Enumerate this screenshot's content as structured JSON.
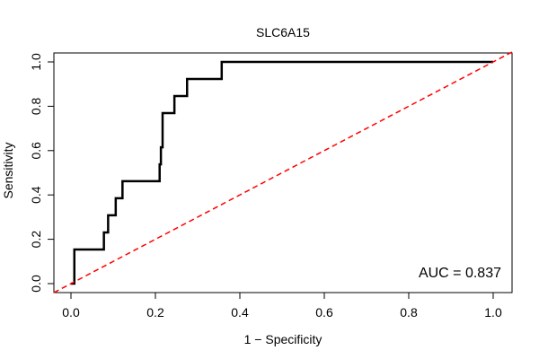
{
  "chart_data": {
    "type": "line",
    "title": "SLC6A15",
    "xlabel": "1 − Specificity",
    "ylabel": "Sensitivity",
    "xlim": [
      0,
      1
    ],
    "ylim": [
      0,
      1
    ],
    "x_ticks": [
      0.0,
      0.2,
      0.4,
      0.6,
      0.8,
      1.0
    ],
    "x_tick_labels": [
      "0.0",
      "0.2",
      "0.4",
      "0.6",
      "0.8",
      "1.0"
    ],
    "y_ticks": [
      0.0,
      0.2,
      0.4,
      0.6,
      0.8,
      1.0
    ],
    "y_tick_labels": [
      "0.0",
      "0.2",
      "0.4",
      "0.6",
      "0.8",
      "1.0"
    ],
    "grid": false,
    "legend": "none",
    "annotation": "AUC = 0.837",
    "series": [
      {
        "name": "ROC curve",
        "color": "#000000",
        "style": "step",
        "x": [
          0.0,
          0.0,
          0.008,
          0.008,
          0.008,
          0.078,
          0.078,
          0.088,
          0.088,
          0.106,
          0.106,
          0.122,
          0.122,
          0.21,
          0.21,
          0.213,
          0.213,
          0.217,
          0.217,
          0.245,
          0.245,
          0.275,
          0.275,
          0.357,
          0.357,
          1.0
        ],
        "y": [
          0.0,
          0.0,
          0.0,
          0.077,
          0.154,
          0.154,
          0.231,
          0.231,
          0.308,
          0.308,
          0.385,
          0.385,
          0.462,
          0.462,
          0.538,
          0.538,
          0.615,
          0.615,
          0.769,
          0.769,
          0.846,
          0.846,
          0.923,
          0.923,
          1.0,
          1.0
        ]
      },
      {
        "name": "Chance line",
        "color": "#ff0000",
        "style": "dashed",
        "x": [
          0,
          1
        ],
        "y": [
          0,
          1
        ]
      }
    ]
  }
}
